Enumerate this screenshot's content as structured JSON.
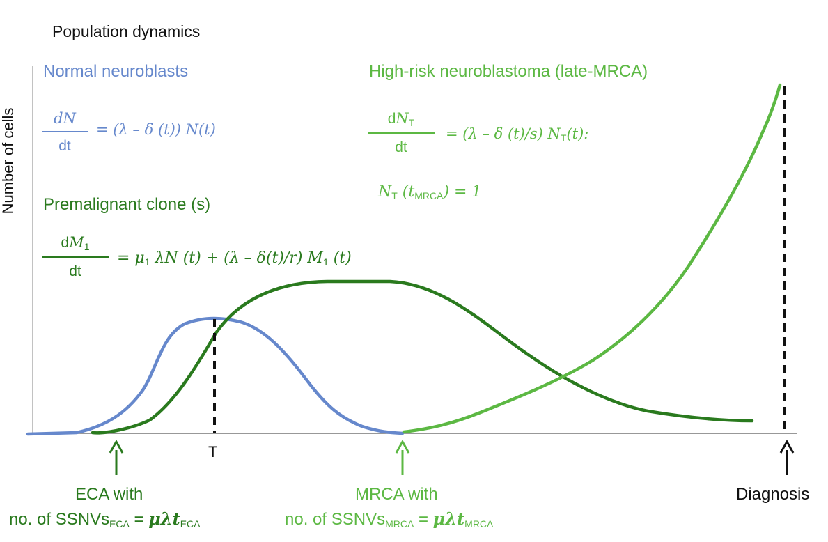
{
  "title": "Population dynamics",
  "y_axis_label": "Number of cells",
  "normal": {
    "heading": "Normal neuroblasts",
    "eq_num": "dN",
    "eq_den": "dt",
    "eq_rhs": "= (λ – δ (t)) N(t)"
  },
  "premalignant": {
    "heading": "Premalignant clone (s)",
    "eq_num_main": "dM",
    "eq_num_sub": "1",
    "eq_den": "dt",
    "eq_rhs_a": "= μ",
    "eq_rhs_sub1": "1",
    "eq_rhs_b": " λN (t) + (λ – δ(t)/r) M",
    "eq_rhs_sub2": "1",
    "eq_rhs_c": " (t)"
  },
  "high_risk": {
    "heading": "High-risk neuroblastoma (late-MRCA)",
    "eq_num_main": "dN",
    "eq_num_sub": "T",
    "eq_den": "dt",
    "eq_rhs_a": "= (λ – δ (t)/s) N",
    "eq_rhs_sub": "T",
    "eq_rhs_b": "(t):",
    "init_a": "N",
    "init_sub1": "T",
    "init_b": " (t",
    "init_sub2": "MRCA",
    "init_c": ") = 1"
  },
  "markers": {
    "T_label": "T",
    "eca_line1": "ECA with",
    "eca_line2_a": "no. of SSNVs",
    "eca_line2_sub": "ECA",
    "eca_line2_b": " = ",
    "eca_line2_math": "μλt",
    "eca_line2_math_sub": "ECA",
    "mrca_line1": "MRCA with",
    "mrca_line2_a": "no. of SSNVs",
    "mrca_line2_sub": "MRCA",
    "mrca_line2_b": " = ",
    "mrca_line2_math": "μλt",
    "mrca_line2_math_sub": "MRCA",
    "diagnosis": "Diagnosis"
  },
  "colors": {
    "normal": "#6688cc",
    "premalignant": "#2a7a1e",
    "high_risk": "#5cb843",
    "axis": "#777777",
    "marker": "#111111"
  }
}
